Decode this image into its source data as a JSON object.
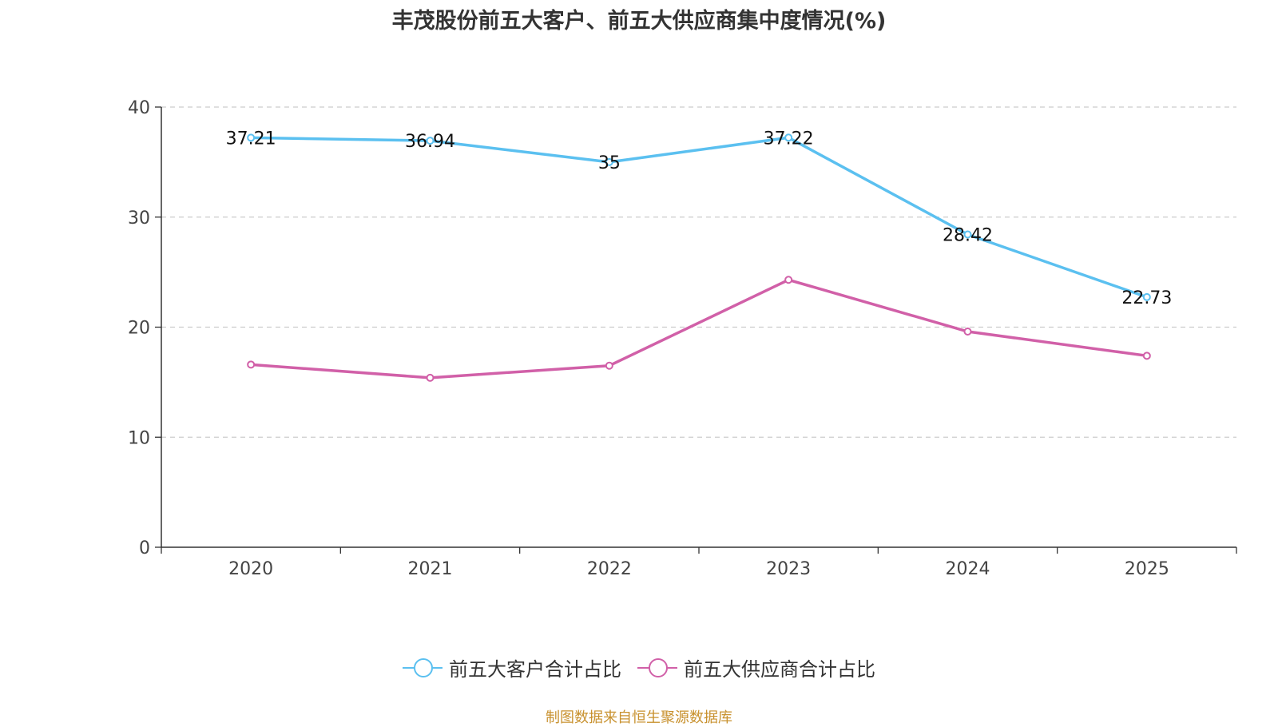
{
  "title": "丰茂股份前五大客户、前五大供应商集中度情况(%)",
  "source": "制图数据来自恒生聚源数据库",
  "chart_data": {
    "type": "line",
    "categories": [
      "2020",
      "2021",
      "2022",
      "2023",
      "2024",
      "2025"
    ],
    "ylim": [
      0,
      40
    ],
    "yticks": [
      0,
      10,
      20,
      30,
      40
    ],
    "grid": true,
    "legend_position": "bottom-center",
    "series": [
      {
        "name": "前五大客户合计占比",
        "color": "#5bc0f0",
        "values": [
          37.21,
          36.94,
          35,
          37.22,
          28.42,
          22.73
        ],
        "labels": [
          "37.21",
          "36.94",
          "35",
          "37.22",
          "28.42",
          "22.73"
        ]
      },
      {
        "name": "前五大供应商合计占比",
        "color": "#d160a8",
        "values": [
          16.6,
          15.4,
          16.5,
          24.3,
          19.6,
          17.4
        ]
      }
    ]
  }
}
